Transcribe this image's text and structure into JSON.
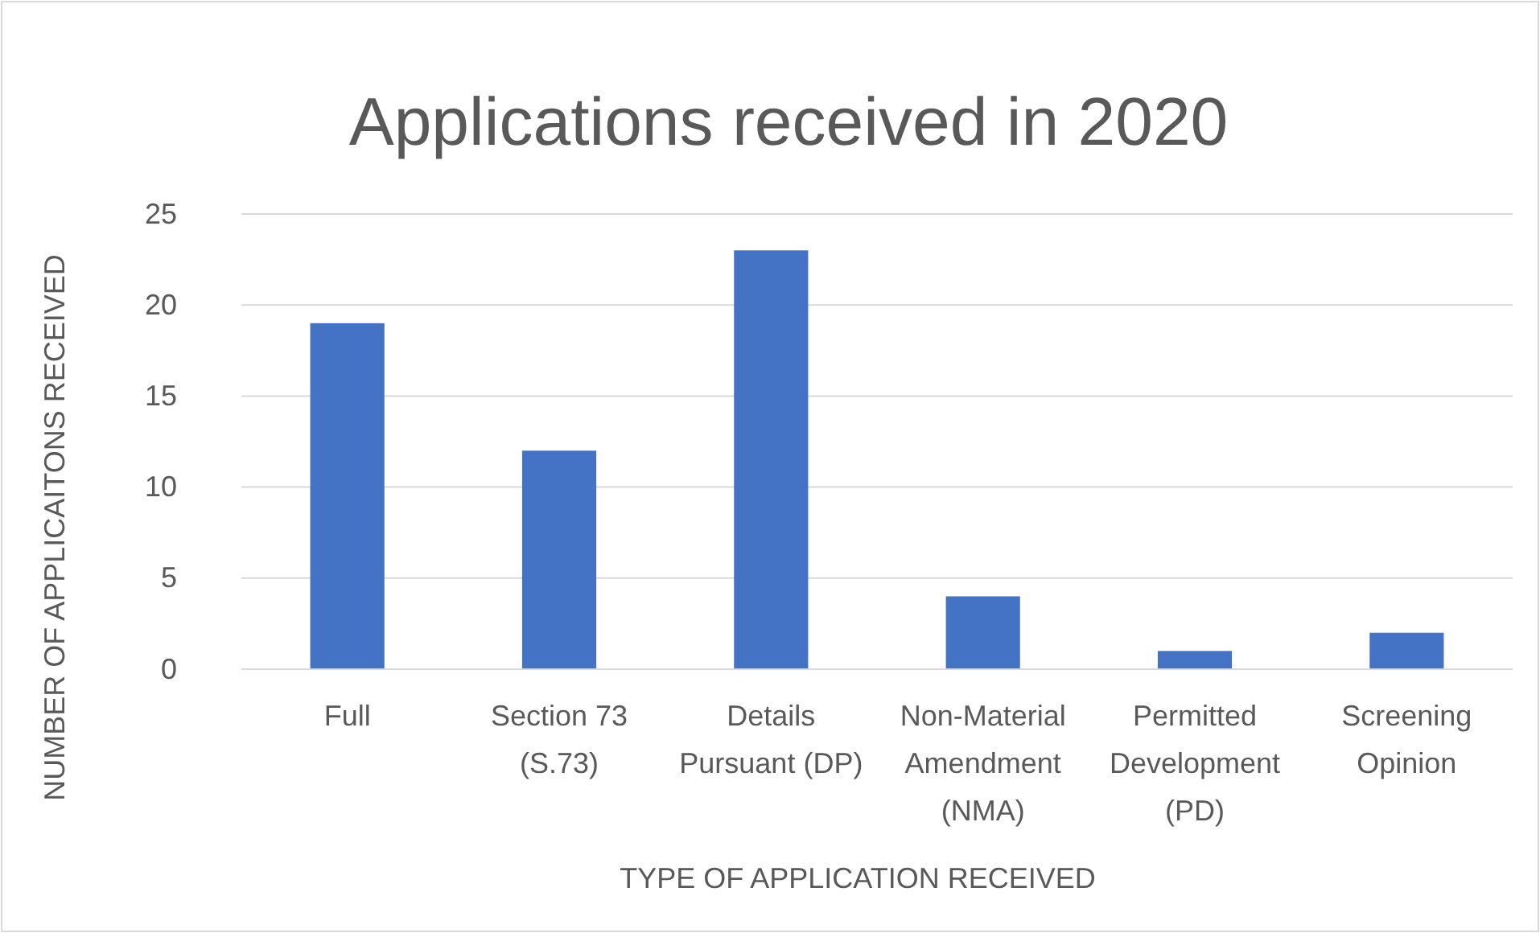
{
  "chart_data": {
    "type": "bar",
    "title": "Applications received in 2020",
    "xlabel": "TYPE OF APPLICATION RECEIVED",
    "ylabel": "NUMBER OF APPLICAITONS RECEIVED",
    "categories": [
      "Full",
      "Section 73 (S.73)",
      "Details Pursuant (DP)",
      "Non-Material Amendment (NMA)",
      "Permitted Development (PD)",
      "Screening Opinion"
    ],
    "values": [
      19,
      12,
      23,
      4,
      1,
      2
    ],
    "color": "#4472c4",
    "ylim": [
      0,
      25
    ],
    "yticks": [
      0,
      5,
      10,
      15,
      20,
      25
    ],
    "grid": "y"
  }
}
